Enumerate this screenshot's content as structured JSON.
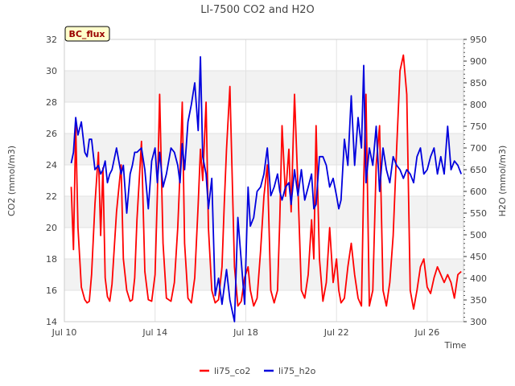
{
  "chart_data": {
    "type": "line",
    "title": "LI-7500 CO2 and H2O",
    "badge": "BC_flux",
    "xlabel": "Time",
    "ylabel_left": "CO2 (mmol/m3)",
    "ylabel_right": "H2O (mmol/m3)",
    "x_range_days": [
      10.0,
      27.6
    ],
    "ylim_left": [
      14,
      32
    ],
    "ylim_right": [
      300,
      950
    ],
    "x_ticks": [
      {
        "day": 10,
        "label": "Jul 10"
      },
      {
        "day": 14,
        "label": "Jul 14"
      },
      {
        "day": 18,
        "label": "Jul 18"
      },
      {
        "day": 22,
        "label": "Jul 22"
      },
      {
        "day": 26,
        "label": "Jul 26"
      }
    ],
    "y_ticks_left": [
      14,
      16,
      18,
      20,
      22,
      24,
      26,
      28,
      30,
      32
    ],
    "y_ticks_right": [
      300,
      350,
      400,
      450,
      500,
      550,
      600,
      650,
      700,
      750,
      800,
      850,
      900,
      950
    ],
    "grid": true,
    "legend_position": "bottom",
    "colors": {
      "co2": "#ff0000",
      "h2o": "#0000dd",
      "band": "#f2f2f2",
      "badge_bg": "#ffffcc",
      "badge_text": "#990000"
    },
    "series": [
      {
        "name": "li75_co2",
        "axis": "left",
        "color": "#ff0000",
        "x": [
          10.3,
          10.4,
          10.5,
          10.6,
          10.75,
          10.9,
          11.0,
          11.1,
          11.2,
          11.35,
          11.5,
          11.6,
          11.7,
          11.8,
          11.9,
          12.0,
          12.1,
          12.3,
          12.5,
          12.6,
          12.75,
          12.9,
          13.0,
          13.1,
          13.2,
          13.4,
          13.55,
          13.7,
          13.85,
          14.0,
          14.1,
          14.2,
          14.35,
          14.5,
          14.7,
          14.85,
          15.0,
          15.1,
          15.2,
          15.3,
          15.45,
          15.6,
          15.75,
          15.9,
          16.0,
          16.1,
          16.25,
          16.35,
          16.5,
          16.65,
          16.8,
          16.95,
          17.05,
          17.15,
          17.3,
          17.5,
          17.65,
          17.8,
          17.95,
          18.1,
          18.2,
          18.35,
          18.5,
          18.65,
          18.8,
          18.95,
          19.1,
          19.25,
          19.4,
          19.5,
          19.6,
          19.75,
          19.9,
          20.0,
          20.15,
          20.3,
          20.45,
          20.6,
          20.75,
          20.9,
          21.0,
          21.1,
          21.25,
          21.4,
          21.55,
          21.7,
          21.85,
          22.0,
          22.1,
          22.2,
          22.35,
          22.5,
          22.65,
          22.8,
          22.95,
          23.1,
          23.2,
          23.3,
          23.45,
          23.6,
          23.75,
          23.9,
          24.05,
          24.2,
          24.35,
          24.5,
          24.65,
          24.8,
          24.95,
          25.1,
          25.25,
          25.4,
          25.55,
          25.7,
          25.85,
          26.0,
          26.15,
          26.3,
          26.45,
          26.6,
          26.75,
          26.9,
          27.05,
          27.2,
          27.35,
          27.5
        ],
        "values": [
          22.6,
          18.6,
          26.5,
          20.0,
          16.2,
          15.4,
          15.2,
          15.3,
          17.0,
          21.5,
          24.8,
          19.5,
          23.8,
          16.8,
          15.6,
          15.3,
          16.4,
          21.0,
          24.0,
          18.0,
          16.0,
          15.3,
          15.4,
          16.8,
          20.5,
          25.5,
          17.2,
          15.4,
          15.3,
          17.0,
          22.0,
          28.5,
          19.0,
          15.5,
          15.3,
          16.5,
          20.0,
          23.5,
          28.0,
          19.0,
          15.5,
          15.2,
          16.8,
          21.5,
          25.0,
          23.0,
          28.0,
          20.0,
          16.0,
          15.2,
          15.4,
          17.5,
          21.5,
          25.0,
          29.0,
          17.5,
          15.0,
          15.3,
          16.8,
          17.5,
          16.0,
          15.0,
          15.5,
          18.5,
          22.0,
          24.0,
          16.0,
          15.2,
          16.0,
          20.5,
          26.5,
          22.0,
          25.0,
          21.0,
          28.5,
          22.5,
          16.0,
          15.5,
          17.0,
          20.5,
          18.0,
          26.5,
          18.0,
          15.3,
          16.5,
          20.0,
          16.5,
          18.0,
          16.0,
          15.2,
          15.5,
          17.5,
          19.0,
          17.0,
          15.5,
          15.0,
          23.0,
          28.5,
          15.0,
          16.0,
          24.0,
          26.5,
          16.0,
          15.0,
          16.5,
          19.5,
          25.0,
          30.0,
          31.0,
          28.5,
          16.0,
          14.8,
          16.0,
          17.5,
          18.0,
          16.2,
          15.8,
          16.8,
          17.5,
          17.0,
          16.5,
          17.0,
          16.5,
          15.5,
          17.0,
          17.2
        ]
      },
      {
        "name": "li75_h2o",
        "axis": "right",
        "color": "#0000dd",
        "x": [
          10.3,
          10.4,
          10.5,
          10.6,
          10.75,
          10.9,
          11.0,
          11.1,
          11.2,
          11.35,
          11.5,
          11.6,
          11.7,
          11.8,
          11.9,
          12.0,
          12.1,
          12.3,
          12.5,
          12.6,
          12.75,
          12.9,
          13.0,
          13.1,
          13.2,
          13.4,
          13.55,
          13.7,
          13.85,
          14.0,
          14.1,
          14.2,
          14.35,
          14.5,
          14.7,
          14.85,
          15.0,
          15.1,
          15.2,
          15.3,
          15.45,
          15.6,
          15.75,
          15.9,
          16.0,
          16.1,
          16.25,
          16.35,
          16.5,
          16.65,
          16.8,
          16.95,
          17.05,
          17.15,
          17.3,
          17.5,
          17.65,
          17.8,
          17.95,
          18.1,
          18.2,
          18.35,
          18.5,
          18.65,
          18.8,
          18.95,
          19.1,
          19.25,
          19.4,
          19.5,
          19.6,
          19.75,
          19.9,
          20.0,
          20.15,
          20.3,
          20.45,
          20.6,
          20.75,
          20.9,
          21.0,
          21.1,
          21.25,
          21.4,
          21.55,
          21.7,
          21.85,
          22.0,
          22.1,
          22.2,
          22.35,
          22.5,
          22.65,
          22.8,
          22.95,
          23.1,
          23.2,
          23.3,
          23.45,
          23.6,
          23.75,
          23.9,
          24.05,
          24.2,
          24.35,
          24.5,
          24.65,
          24.8,
          24.95,
          25.1,
          25.25,
          25.4,
          25.55,
          25.7,
          25.85,
          26.0,
          26.15,
          26.3,
          26.45,
          26.6,
          26.75,
          26.9,
          27.05,
          27.2,
          27.35,
          27.5
        ],
        "values": [
          665,
          690,
          770,
          730,
          760,
          690,
          680,
          720,
          720,
          650,
          660,
          640,
          650,
          670,
          620,
          640,
          650,
          700,
          640,
          660,
          550,
          640,
          660,
          690,
          690,
          700,
          650,
          560,
          670,
          700,
          620,
          690,
          610,
          640,
          700,
          690,
          660,
          620,
          710,
          650,
          760,
          800,
          850,
          740,
          910,
          680,
          640,
          560,
          630,
          360,
          400,
          340,
          380,
          420,
          350,
          300,
          540,
          440,
          340,
          610,
          520,
          540,
          600,
          610,
          640,
          700,
          590,
          610,
          640,
          600,
          580,
          610,
          620,
          570,
          650,
          590,
          650,
          580,
          610,
          640,
          560,
          570,
          680,
          680,
          660,
          610,
          630,
          590,
          560,
          580,
          720,
          660,
          820,
          660,
          770,
          700,
          890,
          620,
          700,
          660,
          750,
          600,
          700,
          650,
          620,
          680,
          660,
          650,
          630,
          650,
          640,
          620,
          680,
          700,
          640,
          650,
          680,
          700,
          640,
          680,
          640,
          750,
          650,
          670,
          660,
          640
        ]
      }
    ]
  }
}
